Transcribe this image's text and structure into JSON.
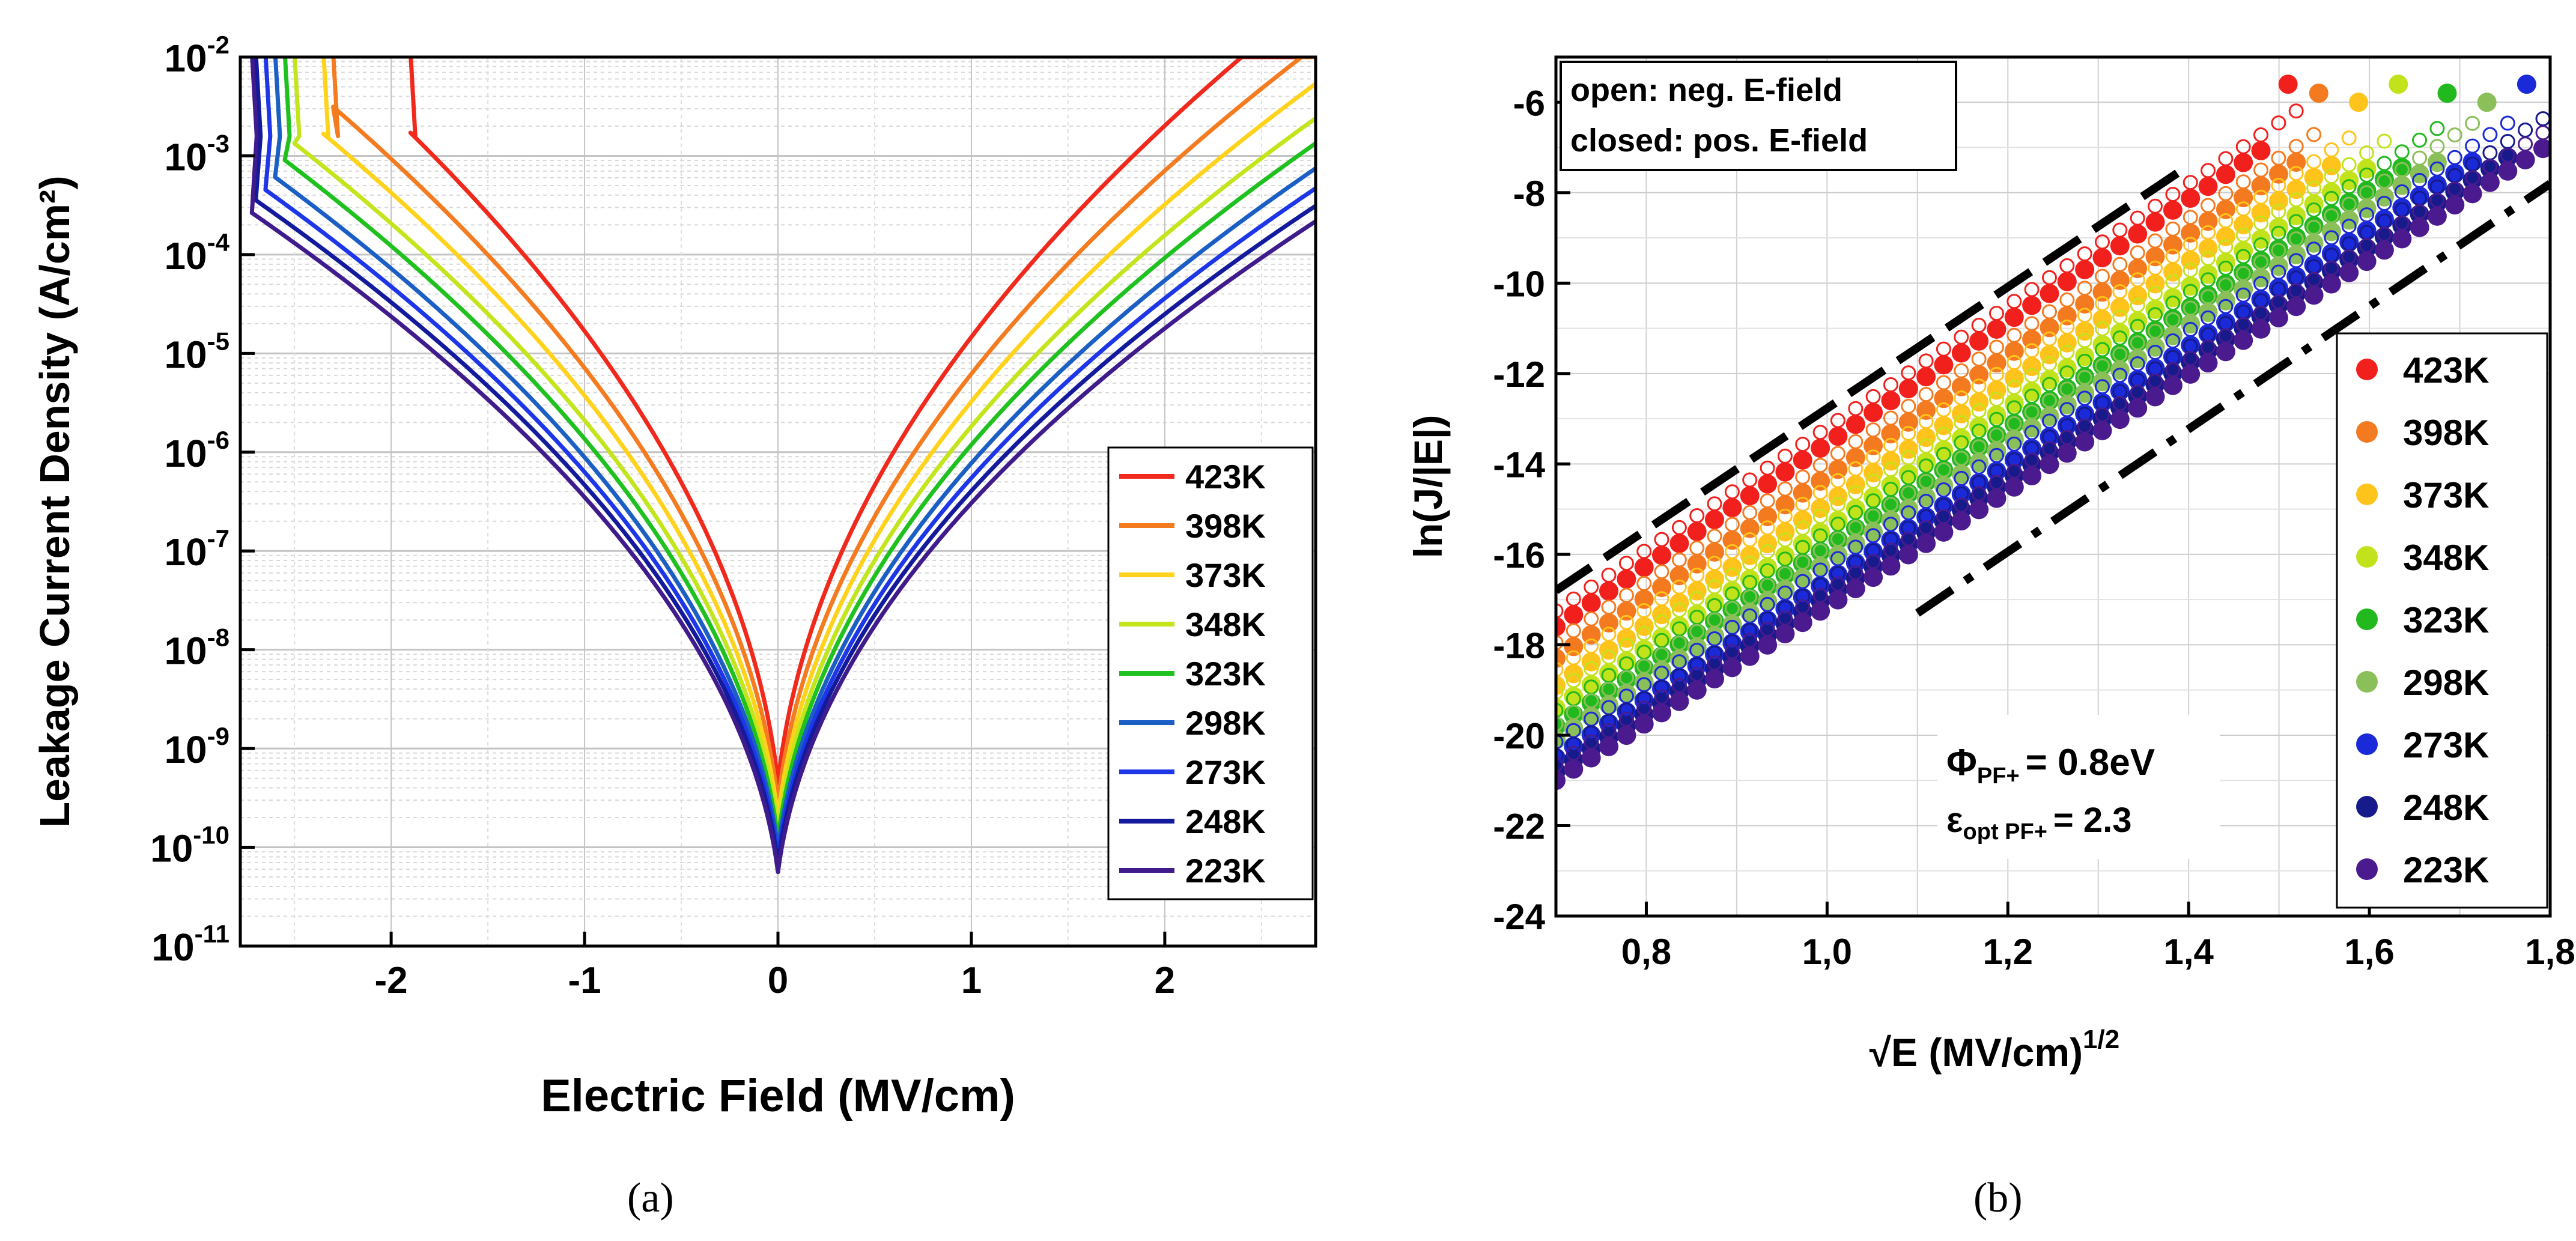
{
  "panels": {
    "a": "(a)",
    "b": "(b)"
  },
  "chart_data": [
    {
      "type": "line",
      "panel": "(a)",
      "title": "",
      "xlabel": "Electric Field (MV/cm)",
      "ylabel": "Leakage Current Density (A/cm²)",
      "xlim": [
        -2.78,
        2.78
      ],
      "ylim_log10": [
        -11,
        -2
      ],
      "xticks": [
        "-2",
        "-1",
        "0",
        "1",
        "2"
      ],
      "yticks": [
        {
          "base": "10",
          "exp": "-2"
        },
        {
          "base": "10",
          "exp": "-3"
        },
        {
          "base": "10",
          "exp": "-4"
        },
        {
          "base": "10",
          "exp": "-5"
        },
        {
          "base": "10",
          "exp": "-6"
        },
        {
          "base": "10",
          "exp": "-7"
        },
        {
          "base": "10",
          "exp": "-8"
        },
        {
          "base": "10",
          "exp": "-9"
        },
        {
          "base": "10",
          "exp": "-10"
        },
        {
          "base": "10",
          "exp": "-11"
        }
      ],
      "grid": true,
      "legend_position": "bottom-right",
      "series": [
        {
          "name": "423K",
          "color": "#f1291d",
          "log_j_at_0": -9.35,
          "slope_per_sqrt_mv": 5.2,
          "left_spike_e": -1.9
        },
        {
          "name": "398K",
          "color": "#f47b20",
          "log_j_at_0": -9.55,
          "slope_per_sqrt_mv": 5.0,
          "left_spike_e": -2.3
        },
        {
          "name": "373K",
          "color": "#ffd21c",
          "log_j_at_0": -9.7,
          "slope_per_sqrt_mv": 4.85,
          "left_spike_e": -2.35
        },
        {
          "name": "348K",
          "color": "#c2e51c",
          "log_j_at_0": -9.82,
          "slope_per_sqrt_mv": 4.7,
          "left_spike_e": -2.5
        },
        {
          "name": "323K",
          "color": "#1ec11e",
          "log_j_at_0": -9.92,
          "slope_per_sqrt_mv": 4.6,
          "left_spike_e": -2.55
        },
        {
          "name": "298K",
          "color": "#1b5fc4",
          "log_j_at_0": -10.02,
          "slope_per_sqrt_mv": 4.5,
          "left_spike_e": -2.6
        },
        {
          "name": "273K",
          "color": "#1c36e8",
          "log_j_at_0": -10.1,
          "slope_per_sqrt_mv": 4.42,
          "left_spike_e": -2.65
        },
        {
          "name": "248K",
          "color": "#131a9c",
          "log_j_at_0": -10.17,
          "slope_per_sqrt_mv": 4.35,
          "left_spike_e": -2.7
        },
        {
          "name": "223K",
          "color": "#3f1b8c",
          "log_j_at_0": -10.25,
          "slope_per_sqrt_mv": 4.3,
          "left_spike_e": -2.72
        }
      ]
    },
    {
      "type": "scatter",
      "panel": "(b)",
      "title": "",
      "xlabel": "√E (MV/cm)",
      "xlabel_sup": "1/2",
      "ylabel": "ln(J/|E|)",
      "xlim": [
        0.7,
        1.8
      ],
      "ylim": [
        -24,
        -5
      ],
      "xticks": [
        "0,8",
        "1,0",
        "1,2",
        "1,4",
        "1,6",
        "1,8"
      ],
      "xtick_values": [
        0.8,
        1.0,
        1.2,
        1.4,
        1.6,
        1.8
      ],
      "yticks": [
        "-6",
        "-8",
        "-10",
        "-12",
        "-14",
        "-16",
        "-18",
        "-20",
        "-22",
        "-24"
      ],
      "ytick_values": [
        -6,
        -8,
        -10,
        -12,
        -14,
        -16,
        -18,
        -20,
        -22,
        -24
      ],
      "grid": true,
      "legend_position": "right",
      "note_lines": [
        "open: neg. E-field",
        "closed: pos. E-field"
      ],
      "annotation": {
        "phi_symbol": "Φ",
        "phi_sub": "PF+",
        "phi_value": "= 0.8eV",
        "eps_symbol": "ε",
        "eps_sub": "opt PF+",
        "eps_value": "= 2.3"
      },
      "guide_lines": [
        {
          "style": "dash",
          "x": [
            0.7,
            1.4
          ],
          "y": [
            -16.8,
            -7.4
          ]
        },
        {
          "style": "dash-dot",
          "x": [
            1.1,
            1.8
          ],
          "y": [
            -17.3,
            -7.8
          ]
        }
      ],
      "series": [
        {
          "name": "423K",
          "color": "#f2201c",
          "y_at_0_7": -17.6,
          "slope": 13.5,
          "x_max": 1.49
        },
        {
          "name": "398K",
          "color": "#f47a1f",
          "y_at_0_7": -18.3,
          "slope": 13.4,
          "x_max": 1.52
        },
        {
          "name": "373K",
          "color": "#ffc41c",
          "y_at_0_7": -18.9,
          "slope": 13.4,
          "x_max": 1.56
        },
        {
          "name": "348K",
          "color": "#c2e31c",
          "y_at_0_7": -19.4,
          "slope": 13.3,
          "x_max": 1.6
        },
        {
          "name": "323K",
          "color": "#22b91e",
          "y_at_0_7": -19.8,
          "slope": 13.2,
          "x_max": 1.65
        },
        {
          "name": "298K",
          "color": "#8bbf5a",
          "y_at_0_7": -20.1,
          "slope": 13.1,
          "x_max": 1.69
        },
        {
          "name": "273K",
          "color": "#1a2ad8",
          "y_at_0_7": -20.5,
          "slope": 13.0,
          "x_max": 1.73
        },
        {
          "name": "248K",
          "color": "#161a8a",
          "y_at_0_7": -20.8,
          "slope": 12.9,
          "x_max": 1.77
        },
        {
          "name": "223K",
          "color": "#4a1a8e",
          "y_at_0_7": -21.0,
          "slope": 12.8,
          "x_max": 1.8
        }
      ]
    }
  ]
}
